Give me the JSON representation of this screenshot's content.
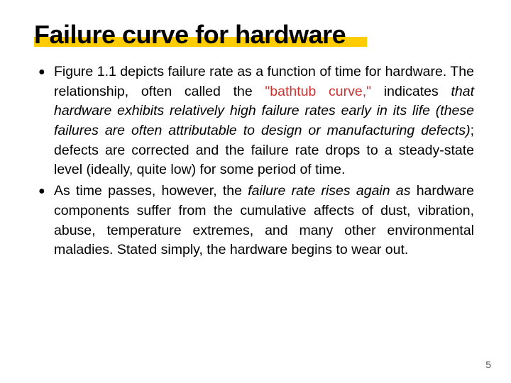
{
  "title": "Failure curve for hardware",
  "title_underline_color": "#ffcc00",
  "title_color": "#000000",
  "title_fontsize": 36,
  "body_fontsize": 19.5,
  "body_color": "#000000",
  "quoted_color": "#cc3333",
  "background_color": "#ffffff",
  "page_number": "5",
  "bullets": [
    {
      "leading": "Figure 1.1 depicts failure rate as a function of time for hardware. The relationship, often called the ",
      "quoted": "\"bathtub curve,\"",
      "mid": " indicates ",
      "italic": "that hardware exhibits relatively high failure rates early in its life (these failures are often attributable to design or manufacturing defects)",
      "trailing": "; defects are corrected and the failure rate drops to a steady-state level (ideally, quite low) for some period of time."
    },
    {
      "leading": " As time passes, however, the ",
      "italic": "failure rate rises again as",
      "trailing": " hardware components suffer from the cumulative affects of dust, vibration, abuse, temperature extremes, and many other environmental maladies. Stated simply, the hardware begins to wear out."
    }
  ]
}
